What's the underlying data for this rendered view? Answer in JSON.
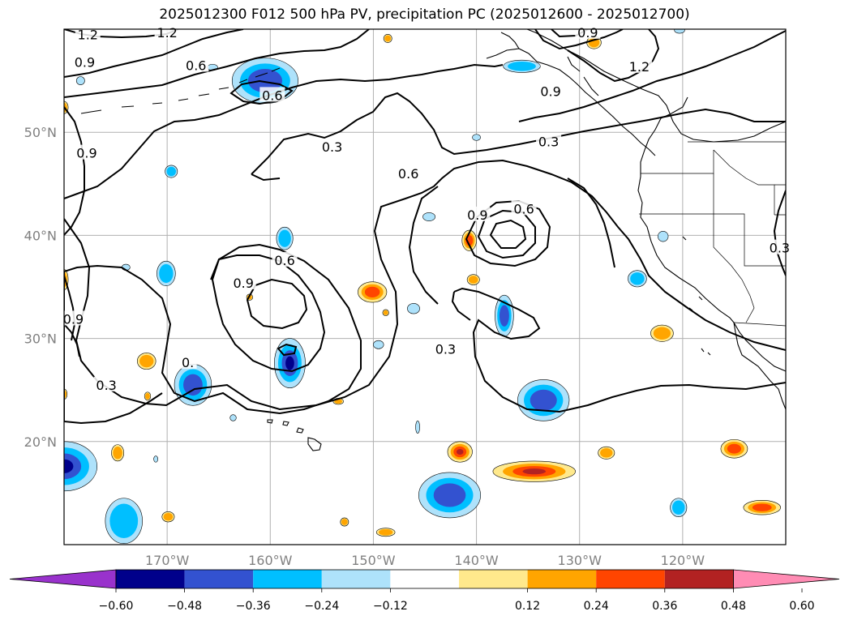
{
  "title": "2025012300 F012 500 hPa PV, precipitation PC (2025012600 - 2025012700)",
  "map": {
    "lon_range": [
      -180,
      -110
    ],
    "lat_range": [
      10,
      60
    ],
    "lon_ticks": [
      {
        "value": -170,
        "label": "170°W"
      },
      {
        "value": -160,
        "label": "160°W"
      },
      {
        "value": -150,
        "label": "150°W"
      },
      {
        "value": -140,
        "label": "140°W"
      },
      {
        "value": -130,
        "label": "130°W"
      },
      {
        "value": -120,
        "label": "120°W"
      }
    ],
    "lat_ticks": [
      {
        "value": 20,
        "label": "20°N"
      },
      {
        "value": 30,
        "label": "30°N"
      },
      {
        "value": 40,
        "label": "40°N"
      },
      {
        "value": 50,
        "label": "50°N"
      }
    ],
    "gridlines": true
  },
  "contours": {
    "field": "500 hPa PV",
    "labels": [
      {
        "text": "1.2",
        "lon": -177.7,
        "lat": 59.5
      },
      {
        "text": "1.2",
        "lon": -170.0,
        "lat": 59.7
      },
      {
        "text": "0.9",
        "lon": -178.0,
        "lat": 56.8
      },
      {
        "text": "0.6",
        "lon": -167.2,
        "lat": 56.5
      },
      {
        "text": "0.6",
        "lon": -159.8,
        "lat": 53.6
      },
      {
        "text": "0.9",
        "lon": -177.8,
        "lat": 48.0
      },
      {
        "text": "0.3",
        "lon": -154.0,
        "lat": 48.6
      },
      {
        "text": "0.6",
        "lon": -146.6,
        "lat": 46.0
      },
      {
        "text": "0.3",
        "lon": -133.0,
        "lat": 49.1
      },
      {
        "text": "0.9",
        "lon": -132.8,
        "lat": 54.0
      },
      {
        "text": "1.2",
        "lon": -124.2,
        "lat": 56.4
      },
      {
        "text": "0.9",
        "lon": -129.2,
        "lat": 59.7
      },
      {
        "text": "0.6",
        "lon": -135.4,
        "lat": 42.6
      },
      {
        "text": "0.9",
        "lon": -139.9,
        "lat": 42.0
      },
      {
        "text": "0.6",
        "lon": -158.6,
        "lat": 37.6
      },
      {
        "text": "0.9",
        "lon": -162.6,
        "lat": 35.4
      },
      {
        "text": "0.9",
        "lon": -179.1,
        "lat": 31.9
      },
      {
        "text": "0.3",
        "lon": -143.0,
        "lat": 29.0
      },
      {
        "text": "0.3",
        "lon": -175.9,
        "lat": 25.5
      },
      {
        "text": "0.3",
        "lon": -110.6,
        "lat": 38.8
      },
      {
        "text": "0.",
        "lon": -168.0,
        "lat": 27.7
      }
    ]
  },
  "precipitation_pc": {
    "colorbar": {
      "tick_labels": [
        "−0.60",
        "−0.48",
        "−0.36",
        "−0.24",
        "−0.12",
        "0.12",
        "0.24",
        "0.36",
        "0.48",
        "0.60"
      ],
      "bins": [
        {
          "range": "< -0.60",
          "color": "#9932cc"
        },
        {
          "range": "-0.60 to -0.48",
          "color": "#00008b"
        },
        {
          "range": "-0.48 to -0.36",
          "color": "#3352d0"
        },
        {
          "range": "-0.36 to -0.24",
          "color": "#00bfff"
        },
        {
          "range": "-0.24 to -0.12",
          "color": "#aee2fb"
        },
        {
          "range": "-0.12 to 0.12",
          "color": "#ffffff"
        },
        {
          "range": "0.12 to 0.24",
          "color": "#ffe98c"
        },
        {
          "range": "0.24 to 0.36",
          "color": "#ffa500"
        },
        {
          "range": "0.36 to 0.48",
          "color": "#ff4500"
        },
        {
          "range": "0.48 to 0.60",
          "color": "#b22222"
        },
        {
          "range": "> 0.60",
          "color": "#ff8cb4"
        }
      ]
    },
    "negative_blobs": [
      {
        "lon": -160.5,
        "lat": 55.0,
        "rx": 3.2,
        "ry": 2.2,
        "strength": 2
      },
      {
        "lon": -180.0,
        "lat": 17.6,
        "rx": 3.2,
        "ry": 2.4,
        "strength": 3
      },
      {
        "lon": -174.2,
        "lat": 12.3,
        "rx": 1.8,
        "ry": 2.2,
        "strength": 1
      },
      {
        "lon": -158.1,
        "lat": 27.6,
        "rx": 1.5,
        "ry": 2.4,
        "strength": 3
      },
      {
        "lon": -167.5,
        "lat": 25.5,
        "rx": 1.8,
        "ry": 2.0,
        "strength": 2
      },
      {
        "lon": -170.1,
        "lat": 36.3,
        "rx": 0.9,
        "ry": 1.2,
        "strength": 1
      },
      {
        "lon": -169.6,
        "lat": 46.2,
        "rx": 0.6,
        "ry": 0.6,
        "strength": 1
      },
      {
        "lon": -158.6,
        "lat": 39.7,
        "rx": 0.8,
        "ry": 1.1,
        "strength": 1
      },
      {
        "lon": -137.3,
        "lat": 32.2,
        "rx": 0.9,
        "ry": 2.0,
        "strength": 2
      },
      {
        "lon": -133.5,
        "lat": 24.0,
        "rx": 2.5,
        "ry": 2.0,
        "strength": 2
      },
      {
        "lon": -142.6,
        "lat": 14.8,
        "rx": 3.0,
        "ry": 2.2,
        "strength": 2
      },
      {
        "lon": -135.6,
        "lat": 56.4,
        "rx": 1.8,
        "ry": 0.6,
        "strength": 1
      },
      {
        "lon": -124.4,
        "lat": 35.8,
        "rx": 0.9,
        "ry": 0.8,
        "strength": 1
      },
      {
        "lon": -120.4,
        "lat": 13.6,
        "rx": 0.8,
        "ry": 0.9,
        "strength": 1
      },
      {
        "lon": -163.6,
        "lat": 22.3,
        "rx": 0.3,
        "ry": 0.3,
        "strength": 0
      },
      {
        "lon": -149.5,
        "lat": 29.4,
        "rx": 0.5,
        "ry": 0.4,
        "strength": 0
      },
      {
        "lon": -146.1,
        "lat": 32.9,
        "rx": 0.6,
        "ry": 0.5,
        "strength": 0
      },
      {
        "lon": -144.6,
        "lat": 41.8,
        "rx": 0.6,
        "ry": 0.4,
        "strength": 0
      },
      {
        "lon": -145.7,
        "lat": 21.4,
        "rx": 0.2,
        "ry": 0.6,
        "strength": 0
      },
      {
        "lon": -121.9,
        "lat": 39.9,
        "rx": 0.5,
        "ry": 0.5,
        "strength": 0
      },
      {
        "lon": -171.1,
        "lat": 18.3,
        "rx": 0.2,
        "ry": 0.3,
        "strength": 0
      },
      {
        "lon": -174.0,
        "lat": 36.9,
        "rx": 0.4,
        "ry": 0.3,
        "strength": 0
      },
      {
        "lon": -140.0,
        "lat": 49.5,
        "rx": 0.4,
        "ry": 0.3,
        "strength": 0
      },
      {
        "lon": -120.3,
        "lat": 59.9,
        "rx": 0.5,
        "ry": 0.3,
        "strength": 0
      },
      {
        "lon": -165.6,
        "lat": 56.3,
        "rx": 0.5,
        "ry": 0.3,
        "strength": 0
      },
      {
        "lon": -178.4,
        "lat": 55.0,
        "rx": 0.4,
        "ry": 0.4,
        "strength": 0
      }
    ],
    "positive_blobs": [
      {
        "lon": -150.1,
        "lat": 34.5,
        "rx": 1.4,
        "ry": 1.0,
        "strength": 2
      },
      {
        "lon": -172.0,
        "lat": 27.8,
        "rx": 0.9,
        "ry": 0.8,
        "strength": 1
      },
      {
        "lon": -140.7,
        "lat": 39.5,
        "rx": 0.7,
        "ry": 1.0,
        "strength": 2
      },
      {
        "lon": -140.3,
        "lat": 35.7,
        "rx": 0.6,
        "ry": 0.5,
        "strength": 1
      },
      {
        "lon": -122.0,
        "lat": 30.5,
        "rx": 1.1,
        "ry": 0.8,
        "strength": 1
      },
      {
        "lon": -141.6,
        "lat": 19.0,
        "rx": 1.2,
        "ry": 1.0,
        "strength": 3
      },
      {
        "lon": -134.4,
        "lat": 17.1,
        "rx": 4.0,
        "ry": 1.0,
        "strength": 3
      },
      {
        "lon": -127.4,
        "lat": 18.9,
        "rx": 0.8,
        "ry": 0.6,
        "strength": 1
      },
      {
        "lon": -115.0,
        "lat": 19.3,
        "rx": 1.3,
        "ry": 0.9,
        "strength": 2
      },
      {
        "lon": -112.3,
        "lat": 13.6,
        "rx": 1.8,
        "ry": 0.7,
        "strength": 2
      },
      {
        "lon": -174.8,
        "lat": 18.9,
        "rx": 0.6,
        "ry": 0.8,
        "strength": 1
      },
      {
        "lon": -169.9,
        "lat": 12.7,
        "rx": 0.6,
        "ry": 0.5,
        "strength": 1
      },
      {
        "lon": -152.8,
        "lat": 12.2,
        "rx": 0.4,
        "ry": 0.4,
        "strength": 1
      },
      {
        "lon": -148.8,
        "lat": 11.2,
        "rx": 0.9,
        "ry": 0.4,
        "strength": 1
      },
      {
        "lon": -128.6,
        "lat": 58.7,
        "rx": 0.7,
        "ry": 0.6,
        "strength": 1
      },
      {
        "lon": -148.6,
        "lat": 59.1,
        "rx": 0.4,
        "ry": 0.4,
        "strength": 1
      },
      {
        "lon": -180.0,
        "lat": 35.7,
        "rx": 0.4,
        "ry": 1.0,
        "strength": 1
      },
      {
        "lon": -180.0,
        "lat": 52.4,
        "rx": 0.4,
        "ry": 0.6,
        "strength": 1
      },
      {
        "lon": -180.0,
        "lat": 24.6,
        "rx": 0.3,
        "ry": 0.5,
        "strength": 1
      },
      {
        "lon": -171.9,
        "lat": 24.4,
        "rx": 0.3,
        "ry": 0.4,
        "strength": 1
      },
      {
        "lon": -153.4,
        "lat": 23.9,
        "rx": 0.5,
        "ry": 0.3,
        "strength": 1
      },
      {
        "lon": -162.0,
        "lat": 34.0,
        "rx": 0.3,
        "ry": 0.3,
        "strength": 1
      },
      {
        "lon": -148.8,
        "lat": 32.5,
        "rx": 0.3,
        "ry": 0.3,
        "strength": 1
      }
    ]
  }
}
